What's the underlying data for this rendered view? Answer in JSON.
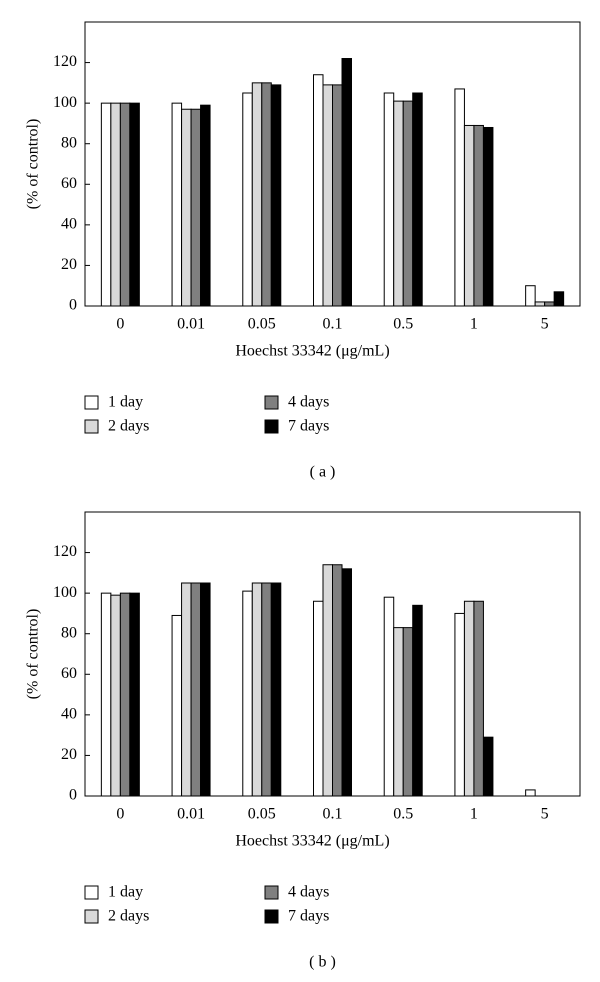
{
  "chart_data": [
    {
      "type": "bar",
      "panel": "( a )",
      "xlabel": "Hoechst 33342 (μg/mL)",
      "ylabel": "(% of control)",
      "categories": [
        "0",
        "0.01",
        "0.05",
        "0.1",
        "0.5",
        "1",
        "5"
      ],
      "series": [
        {
          "name": "1 day",
          "color": "#ffffff",
          "values": [
            100,
            100,
            105,
            114,
            105,
            107,
            10
          ]
        },
        {
          "name": "2 days",
          "color": "#d9d9d9",
          "values": [
            100,
            97,
            110,
            109,
            101,
            89,
            2
          ]
        },
        {
          "name": "4 days",
          "color": "#808080",
          "values": [
            100,
            97,
            110,
            109,
            101,
            89,
            2
          ]
        },
        {
          "name": "7 days",
          "color": "#000000",
          "values": [
            100,
            99,
            109,
            122,
            105,
            88,
            7
          ]
        }
      ],
      "ylim": [
        0,
        140
      ],
      "yticks": [
        0,
        20,
        40,
        60,
        80,
        100,
        120
      ]
    },
    {
      "type": "bar",
      "panel": "( b )",
      "xlabel": "Hoechst 33342 (μg/mL)",
      "ylabel": "(% of control)",
      "categories": [
        "0",
        "0.01",
        "0.05",
        "0.1",
        "0.5",
        "1",
        "5"
      ],
      "series": [
        {
          "name": "1 day",
          "color": "#ffffff",
          "values": [
            100,
            89,
            101,
            96,
            98,
            90,
            3
          ]
        },
        {
          "name": "2 days",
          "color": "#d9d9d9",
          "values": [
            99,
            105,
            105,
            114,
            83,
            96,
            0
          ]
        },
        {
          "name": "4 days",
          "color": "#808080",
          "values": [
            100,
            105,
            105,
            114,
            83,
            96,
            0
          ]
        },
        {
          "name": "7 days",
          "color": "#000000",
          "values": [
            100,
            105,
            105,
            112,
            94,
            29,
            0
          ]
        }
      ],
      "ylim": [
        0,
        140
      ],
      "yticks": [
        0,
        20,
        40,
        60,
        80,
        100,
        120
      ]
    }
  ]
}
